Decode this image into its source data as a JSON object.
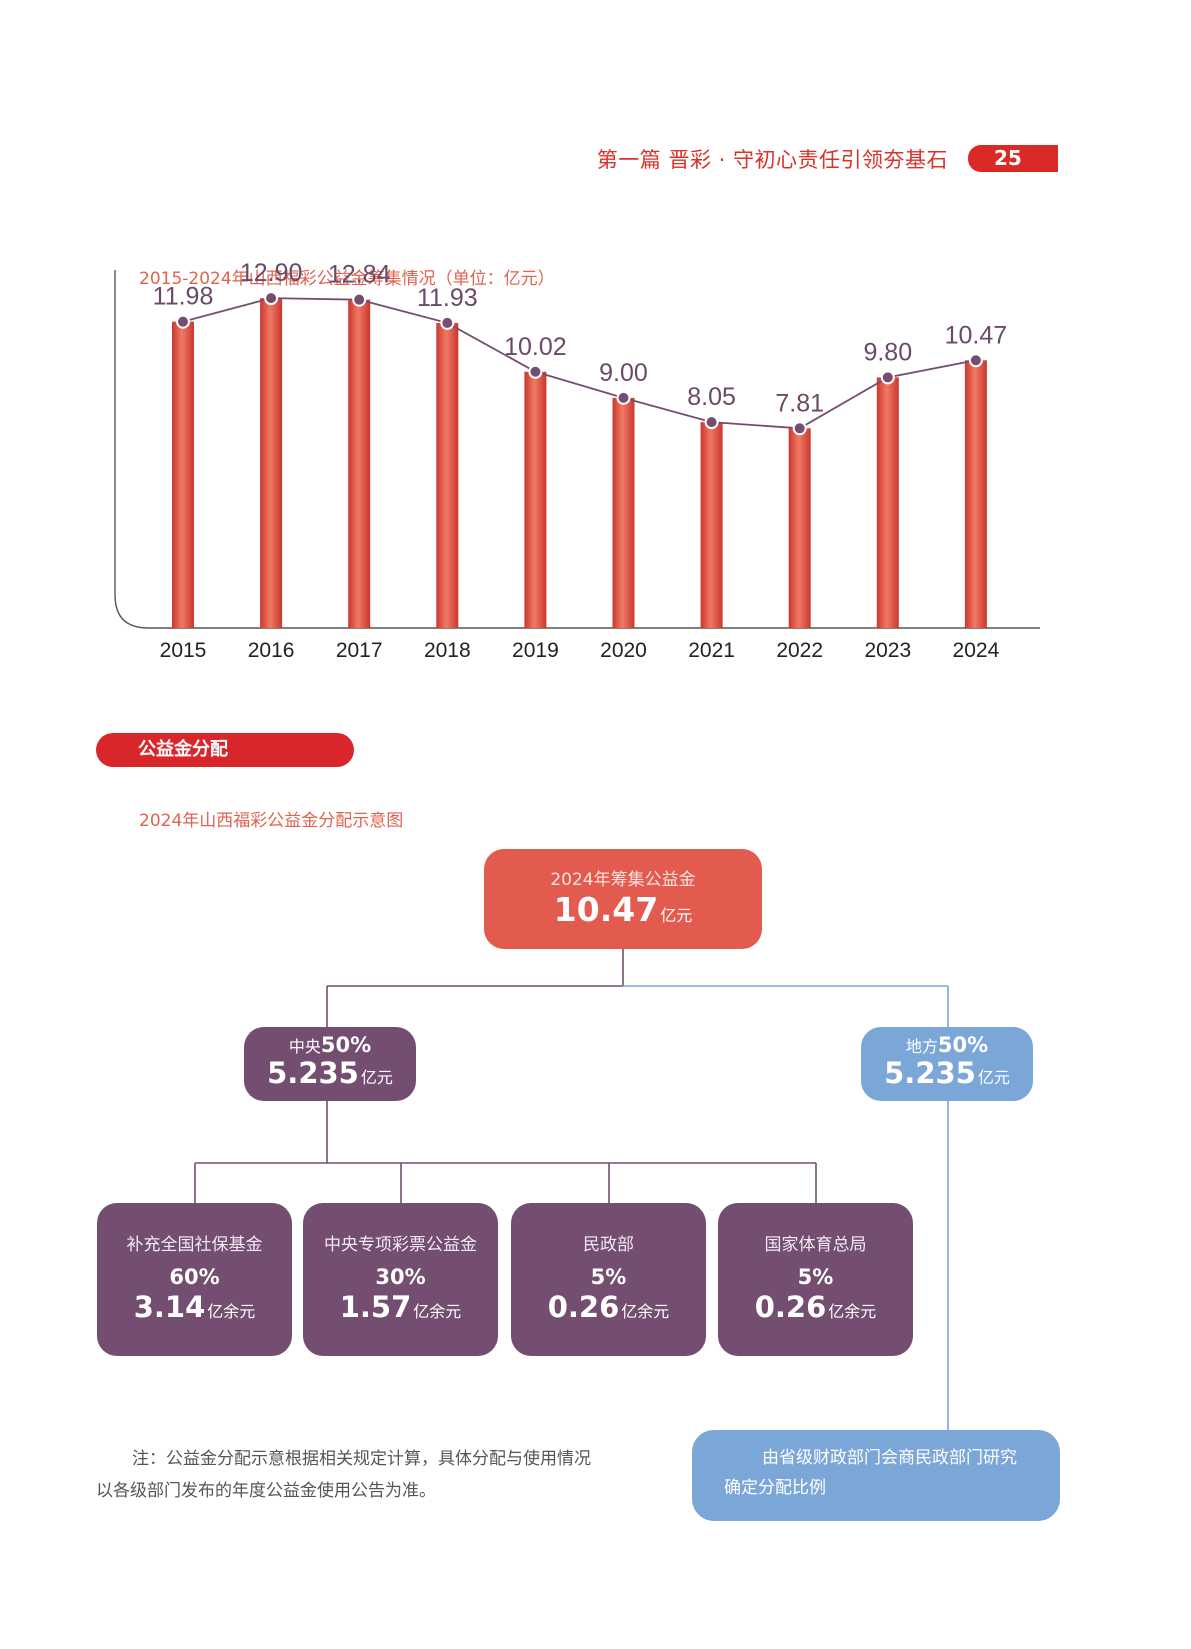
{
  "header": {
    "title": "第一篇 晋彩 · 守初心责任引领夯基石",
    "page_number": "25"
  },
  "chart_title": "2015-2024年山西福彩公益金筹集情况（单位：亿元）",
  "chart_data": {
    "type": "bar",
    "title": "2015-2024年山西福彩公益金筹集情况（单位：亿元）",
    "categories": [
      "2015",
      "2016",
      "2017",
      "2018",
      "2019",
      "2020",
      "2021",
      "2022",
      "2023",
      "2024"
    ],
    "values": [
      11.98,
      12.9,
      12.84,
      11.93,
      10.02,
      9.0,
      8.05,
      7.81,
      9.8,
      10.47
    ],
    "data_labels": [
      "11.98",
      "12.90",
      "12.84",
      "11.93",
      "10.02",
      "9.00",
      "8.05",
      "7.81",
      "9.80",
      "10.47"
    ],
    "overlay": "line-with-markers",
    "ylim": [
      0,
      14
    ],
    "grid": false,
    "colors": {
      "bar": "#d94b3f",
      "line": "#744e70",
      "marker": "#744e70"
    }
  },
  "section_label": "公益金分配",
  "diagram": {
    "title": "2024年山西福彩公益金分配示意图",
    "root": {
      "label": "2024年筹集公益金",
      "amount": "10.47",
      "unit": "亿元"
    },
    "central": {
      "label": "中央",
      "percent": "50%",
      "amount": "5.235",
      "unit": "亿元"
    },
    "local": {
      "label": "地方",
      "percent": "50%",
      "amount": "5.235",
      "unit": "亿元"
    },
    "central_items": [
      {
        "label": "补充全国社保基金",
        "percent": "60%",
        "amount": "3.14",
        "unit": "亿余元"
      },
      {
        "label": "中央专项彩票公益金",
        "percent": "30%",
        "amount": "1.57",
        "unit": "亿余元"
      },
      {
        "label": "民政部",
        "percent": "5%",
        "amount": "0.26",
        "unit": "亿余元"
      },
      {
        "label": "国家体育总局",
        "percent": "5%",
        "amount": "0.26",
        "unit": "亿余元"
      }
    ],
    "local_note": "由省级财政部门会商民政部门研究确定分配比例"
  },
  "note": "注：公益金分配示意根据相关规定计算，具体分配与使用情况以各级部门发布的年度公益金使用公告为准。",
  "colors": {
    "accent_red": "#d8262b",
    "salmon": "#e35a4f",
    "plum": "#744e70",
    "sky": "#7ba6d8"
  }
}
